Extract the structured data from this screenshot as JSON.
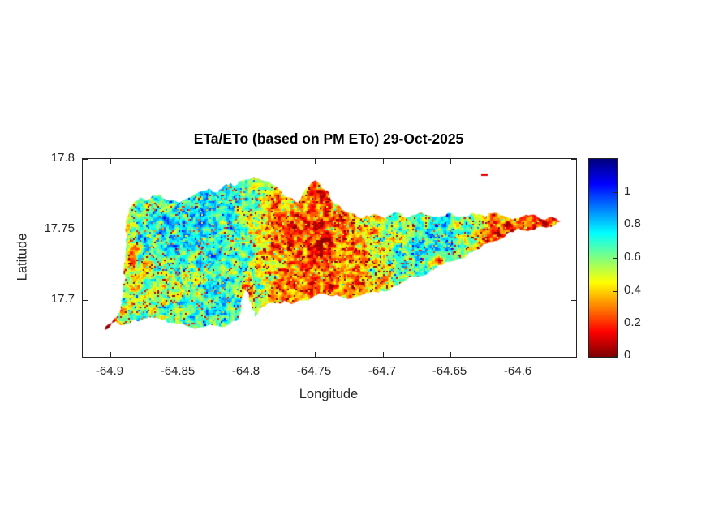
{
  "chart_data": {
    "type": "heatmap",
    "title": "ETa/ETo (based on PM ETo) 29-Oct-2025",
    "xlabel": "Longitude",
    "ylabel": "Latitude",
    "xlim": [
      -64.92,
      -64.558
    ],
    "ylim": [
      17.66,
      17.8
    ],
    "x_ticks": [
      -64.9,
      -64.85,
      -64.8,
      -64.75,
      -64.7,
      -64.65,
      -64.6
    ],
    "x_tick_labels": [
      "-64.9",
      "-64.85",
      "-64.8",
      "-64.75",
      "-64.7",
      "-64.65",
      "-64.6"
    ],
    "y_ticks": [
      17.7,
      17.75,
      17.8
    ],
    "y_tick_labels": [
      "17.7",
      "17.75",
      "17.8"
    ],
    "grid": false,
    "legend": null,
    "colorbar": {
      "position": "right",
      "range": [
        0,
        1.2
      ],
      "ticks": [
        0,
        0.2,
        0.4,
        0.6,
        0.8,
        1
      ],
      "tick_labels": [
        "0",
        "0.2",
        "0.4",
        "0.6",
        "0.8",
        "1"
      ],
      "colormap": "jet-reversed",
      "colormap_key_hex": {
        "low": "#800000",
        "mid": "#7fff7f",
        "high": "#00008f"
      }
    },
    "map": {
      "island_outline": [
        [
          -64.904,
          17.679
        ],
        [
          -64.897,
          17.687
        ],
        [
          -64.892,
          17.694
        ],
        [
          -64.891,
          17.702
        ],
        [
          -64.889,
          17.714
        ],
        [
          -64.89,
          17.724
        ],
        [
          -64.888,
          17.74
        ],
        [
          -64.889,
          17.75
        ],
        [
          -64.886,
          17.762
        ],
        [
          -64.882,
          17.77
        ],
        [
          -64.878,
          17.773
        ],
        [
          -64.872,
          17.771
        ],
        [
          -64.864,
          17.775
        ],
        [
          -64.857,
          17.771
        ],
        [
          -64.849,
          17.769
        ],
        [
          -64.838,
          17.775
        ],
        [
          -64.827,
          17.779
        ],
        [
          -64.821,
          17.776
        ],
        [
          -64.815,
          17.782
        ],
        [
          -64.808,
          17.781
        ],
        [
          -64.802,
          17.785
        ],
        [
          -64.795,
          17.787
        ],
        [
          -64.788,
          17.785
        ],
        [
          -64.781,
          17.782
        ],
        [
          -64.774,
          17.776
        ],
        [
          -64.766,
          17.772
        ],
        [
          -64.762,
          17.769
        ],
        [
          -64.758,
          17.776
        ],
        [
          -64.753,
          17.782
        ],
        [
          -64.749,
          17.785
        ],
        [
          -64.744,
          17.779
        ],
        [
          -64.739,
          17.774
        ],
        [
          -64.733,
          17.768
        ],
        [
          -64.726,
          17.762
        ],
        [
          -64.716,
          17.758
        ],
        [
          -64.707,
          17.761
        ],
        [
          -64.698,
          17.758
        ],
        [
          -64.689,
          17.762
        ],
        [
          -64.68,
          17.759
        ],
        [
          -64.671,
          17.762
        ],
        [
          -64.661,
          17.759
        ],
        [
          -64.652,
          17.762
        ],
        [
          -64.643,
          17.759
        ],
        [
          -64.634,
          17.762
        ],
        [
          -64.625,
          17.759
        ],
        [
          -64.618,
          17.762
        ],
        [
          -64.609,
          17.759
        ],
        [
          -64.6,
          17.758
        ],
        [
          -64.593,
          17.76
        ],
        [
          -64.585,
          17.758
        ],
        [
          -64.577,
          17.759
        ],
        [
          -64.569,
          17.756
        ],
        [
          -64.574,
          17.753
        ],
        [
          -64.582,
          17.752
        ],
        [
          -64.591,
          17.75
        ],
        [
          -64.6,
          17.751
        ],
        [
          -64.609,
          17.747
        ],
        [
          -64.616,
          17.742
        ],
        [
          -64.624,
          17.74
        ],
        [
          -64.631,
          17.736
        ],
        [
          -64.638,
          17.732
        ],
        [
          -64.647,
          17.728
        ],
        [
          -64.656,
          17.725
        ],
        [
          -64.665,
          17.721
        ],
        [
          -64.675,
          17.717
        ],
        [
          -64.683,
          17.714
        ],
        [
          -64.691,
          17.71
        ],
        [
          -64.701,
          17.707
        ],
        [
          -64.71,
          17.705
        ],
        [
          -64.717,
          17.703
        ],
        [
          -64.725,
          17.701
        ],
        [
          -64.734,
          17.704
        ],
        [
          -64.743,
          17.705
        ],
        [
          -64.75,
          17.703
        ],
        [
          -64.757,
          17.7
        ],
        [
          -64.765,
          17.698
        ],
        [
          -64.772,
          17.7
        ],
        [
          -64.779,
          17.698
        ],
        [
          -64.785,
          17.697
        ],
        [
          -64.791,
          17.692
        ],
        [
          -64.794,
          17.688
        ],
        [
          -64.796,
          17.696
        ],
        [
          -64.798,
          17.704
        ],
        [
          -64.8,
          17.71
        ],
        [
          -64.803,
          17.702
        ],
        [
          -64.804,
          17.693
        ],
        [
          -64.806,
          17.686
        ],
        [
          -64.812,
          17.683
        ],
        [
          -64.821,
          17.682
        ],
        [
          -64.832,
          17.681
        ],
        [
          -64.842,
          17.681
        ],
        [
          -64.853,
          17.684
        ],
        [
          -64.862,
          17.686
        ],
        [
          -64.871,
          17.688
        ],
        [
          -64.879,
          17.685
        ],
        [
          -64.888,
          17.683
        ],
        [
          -64.896,
          17.685
        ]
      ],
      "islet": {
        "lon": -64.625,
        "lat": 17.7885,
        "wlon": 0.005,
        "hlat": 0.0018,
        "value": 0.12
      },
      "value_field": {
        "base_by_lon": [
          [
            -64.906,
            0.1
          ],
          [
            -64.891,
            0.5
          ],
          [
            -64.86,
            0.66
          ],
          [
            -64.824,
            0.7
          ],
          [
            -64.794,
            0.58
          ],
          [
            -64.779,
            0.36
          ],
          [
            -64.746,
            0.28
          ],
          [
            -64.716,
            0.36
          ],
          [
            -64.698,
            0.5
          ],
          [
            -64.68,
            0.62
          ],
          [
            -64.656,
            0.68
          ],
          [
            -64.635,
            0.52
          ],
          [
            -64.62,
            0.34
          ],
          [
            -64.596,
            0.24
          ],
          [
            -64.565,
            0.1
          ]
        ],
        "patches": [
          {
            "lon": -64.843,
            "lat": 17.748,
            "rlon": 0.045,
            "rlat": 0.026,
            "value": 0.88,
            "strength": 0.5
          },
          {
            "lon": -64.858,
            "lat": 17.714,
            "rlon": 0.033,
            "rlat": 0.018,
            "value": 0.38,
            "strength": 0.5
          },
          {
            "lon": -64.885,
            "lat": 17.731,
            "rlon": 0.006,
            "rlat": 0.018,
            "value": 0.3,
            "strength": 0.5
          },
          {
            "lon": -64.76,
            "lat": 17.745,
            "rlon": 0.034,
            "rlat": 0.035,
            "value": 0.2,
            "strength": 0.55
          },
          {
            "lon": -64.799,
            "lat": 17.706,
            "rlon": 0.006,
            "rlat": 0.015,
            "value": 0.12,
            "strength": 0.7
          },
          {
            "lon": -64.67,
            "lat": 17.74,
            "rlon": 0.028,
            "rlat": 0.018,
            "value": 0.8,
            "strength": 0.45
          },
          {
            "lon": -64.618,
            "lat": 17.747,
            "rlon": 0.018,
            "rlat": 0.011,
            "value": 0.15,
            "strength": 0.6
          },
          {
            "lon": -64.58,
            "lat": 17.756,
            "rlon": 0.014,
            "rlat": 0.006,
            "value": 0.07,
            "strength": 0.8
          },
          {
            "lon": -64.659,
            "lat": 17.728,
            "rlon": 0.007,
            "rlat": 0.005,
            "value": 0.25,
            "strength": 0.6
          },
          {
            "lon": -64.745,
            "lat": 17.774,
            "rlon": 0.016,
            "rlat": 0.013,
            "value": 0.28,
            "strength": 0.45
          },
          {
            "lon": -64.791,
            "lat": 17.781,
            "rlon": 0.014,
            "rlat": 0.009,
            "value": 0.65,
            "strength": 0.4
          },
          {
            "lon": -64.901,
            "lat": 17.682,
            "rlon": 0.009,
            "rlat": 0.007,
            "value": 0.06,
            "strength": 0.85
          }
        ],
        "noise": {
          "scales": [
            {
              "cell": 0.0024,
              "amp": 0.4
            },
            {
              "cell": 0.0055,
              "amp": 0.3
            },
            {
              "cell": 0.0012,
              "amp": 0.2
            }
          ],
          "speckle_cell": 0.0009,
          "speckle_hi_threshold": 0.935,
          "speckle_hi_drop": 0.5,
          "speckle_lo_threshold": 0.03,
          "speckle_lo_boost": 0.3,
          "clamp": [
            0.02,
            1.1
          ]
        }
      }
    }
  }
}
